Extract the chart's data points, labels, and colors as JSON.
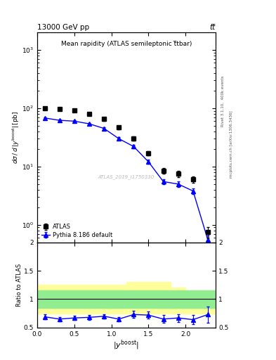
{
  "title_top": "13000 GeV pp",
  "title_top_right": "tt̅",
  "plot_title": "Mean rapidity (ATLAS semileptonic t̅tbar)",
  "ylabel_main": "dσ / d |y^{boost}| [pb]",
  "ylabel_ratio": "Ratio to ATLAS",
  "right_label_top": "Rivet 3.1.10,  400k events",
  "right_label_bottom": "mcplots.cern.ch [arXiv:1306.3436]",
  "watermark": "ATLAS_2019_I1750330",
  "atlas_x": [
    0.1,
    0.3,
    0.5,
    0.7,
    0.9,
    1.1,
    1.3,
    1.5,
    1.7,
    1.9,
    2.1,
    2.3
  ],
  "atlas_y": [
    100.0,
    97.0,
    91.0,
    80.0,
    65.0,
    47.0,
    30.0,
    17.0,
    8.5,
    7.5,
    6.0,
    0.75
  ],
  "atlas_yerr_low": [
    5.0,
    5.0,
    5.0,
    4.5,
    4.0,
    3.5,
    2.5,
    1.5,
    1.0,
    1.0,
    0.8,
    0.15
  ],
  "atlas_yerr_high": [
    5.0,
    5.0,
    5.0,
    4.5,
    4.0,
    3.5,
    2.5,
    1.5,
    1.0,
    1.0,
    0.8,
    0.15
  ],
  "pythia_x": [
    0.1,
    0.3,
    0.5,
    0.7,
    0.9,
    1.1,
    1.3,
    1.5,
    1.7,
    1.9,
    2.1,
    2.3
  ],
  "pythia_y": [
    68.0,
    62.0,
    60.0,
    54.0,
    45.0,
    30.0,
    22.0,
    12.0,
    5.5,
    5.0,
    3.8,
    0.55
  ],
  "pythia_yerr": [
    2.0,
    2.0,
    2.0,
    2.0,
    2.0,
    1.5,
    1.5,
    1.0,
    0.5,
    0.5,
    0.4,
    0.1
  ],
  "ratio_pythia_y": [
    0.69,
    0.65,
    0.67,
    0.68,
    0.7,
    0.65,
    0.73,
    0.72,
    0.65,
    0.67,
    0.64,
    0.73
  ],
  "ratio_pythia_yerr": [
    0.04,
    0.04,
    0.04,
    0.04,
    0.04,
    0.04,
    0.06,
    0.06,
    0.07,
    0.07,
    0.08,
    0.14
  ],
  "band_x_edges": [
    0.0,
    0.2,
    0.4,
    0.6,
    0.8,
    1.0,
    1.2,
    1.4,
    1.6,
    1.8,
    2.0,
    2.2,
    2.4
  ],
  "band_green_low": [
    0.85,
    0.85,
    0.85,
    0.85,
    0.85,
    0.85,
    0.85,
    0.85,
    0.85,
    0.85,
    0.85,
    0.85
  ],
  "band_green_high": [
    1.15,
    1.15,
    1.15,
    1.15,
    1.15,
    1.15,
    1.15,
    1.15,
    1.15,
    1.15,
    1.15,
    1.15
  ],
  "band_yellow_low": [
    0.75,
    0.75,
    0.75,
    0.75,
    0.75,
    0.75,
    0.75,
    0.75,
    0.75,
    0.75,
    0.75,
    0.75
  ],
  "band_yellow_high": [
    1.25,
    1.25,
    1.25,
    1.25,
    1.25,
    1.25,
    1.3,
    1.3,
    1.3,
    1.2,
    1.15,
    1.15
  ],
  "xlim": [
    0.0,
    2.4
  ],
  "ylim_main": [
    0.5,
    2000.0
  ],
  "ylim_ratio": [
    0.5,
    2.0
  ],
  "color_atlas": "black",
  "color_pythia": "blue",
  "color_green": "#90EE90",
  "color_yellow": "#FFFF99"
}
